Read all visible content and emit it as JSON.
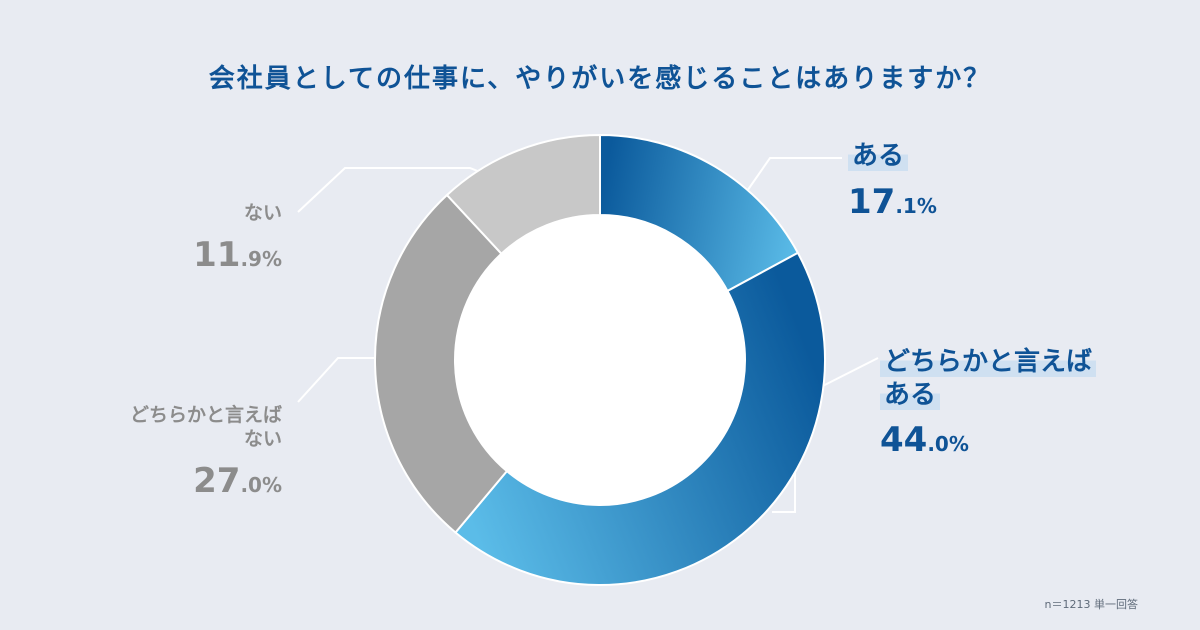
{
  "chart_data": {
    "type": "pie",
    "title": "会社員としての仕事に、やりがいを感じることはありますか？",
    "slices": [
      {
        "label": "ある",
        "value": 17.1,
        "color": "#0f5396"
      },
      {
        "label": "どちらかと言えばある",
        "value": 44.0,
        "color": "#0f5396"
      },
      {
        "label": "どちらかと言えばない",
        "value": 27.0,
        "color": "#a6a6a6"
      },
      {
        "label": "ない",
        "value": 11.9,
        "color": "#c8c8c8"
      }
    ],
    "footnote": "n＝1213 単一回答"
  },
  "labels": {
    "aru": {
      "name_lines": [
        "ある"
      ],
      "int": "17",
      "frac": ".1",
      "unit": "%"
    },
    "dochiraka_aru": {
      "name_lines": [
        "どちらかと言えば",
        "ある"
      ],
      "int": "44",
      "frac": ".0",
      "unit": "%"
    },
    "dochiraka_nai": {
      "name_lines": [
        "どちらかと言えば",
        "ない"
      ],
      "int": "27",
      "frac": ".0",
      "unit": "%"
    },
    "nai": {
      "name_lines": [
        "ない"
      ],
      "int": "11",
      "frac": ".9",
      "unit": "%"
    }
  }
}
